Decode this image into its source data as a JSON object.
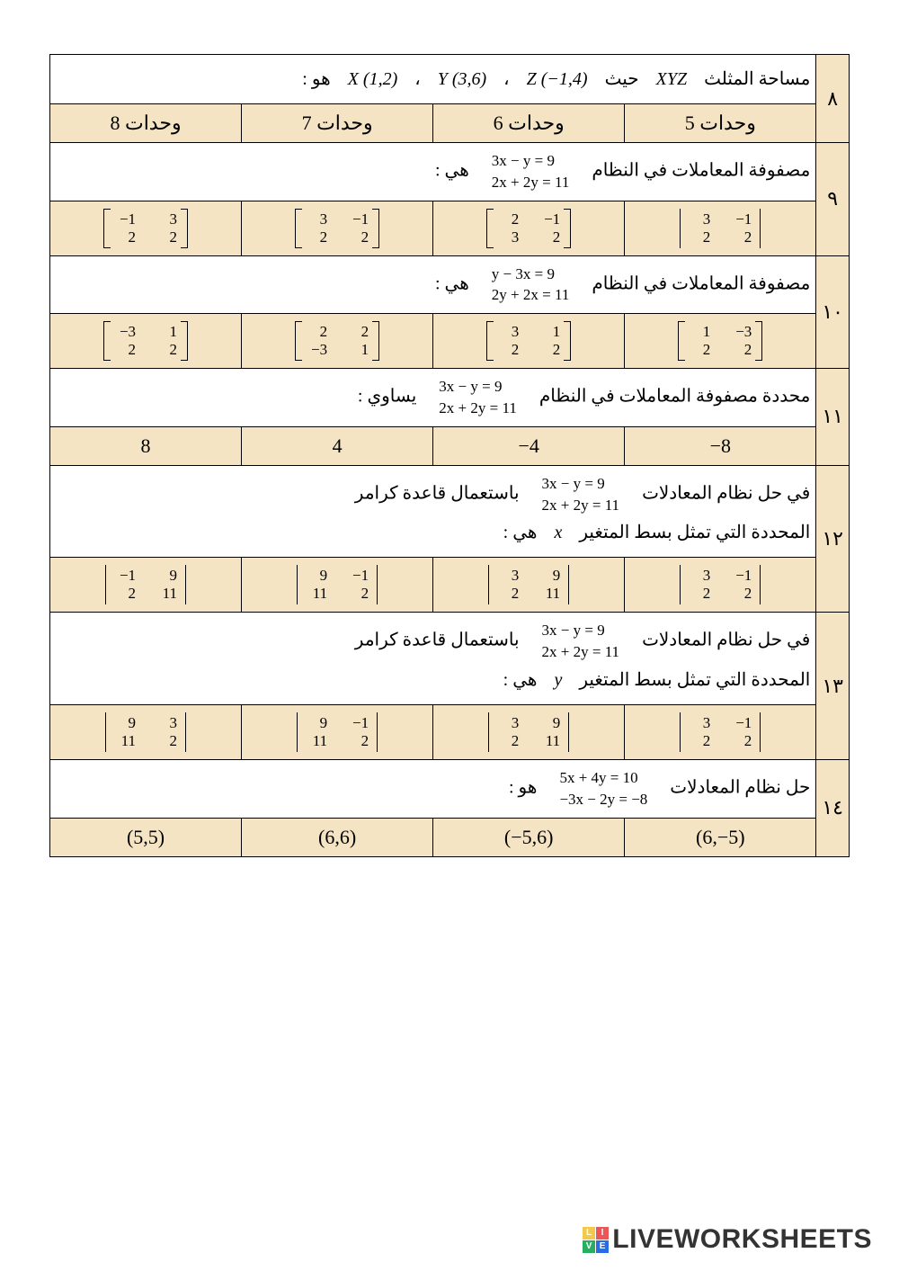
{
  "colors": {
    "num_bg": "#f5e4c4",
    "answer_bg": "#f5e4c4",
    "border": "#000000",
    "page_bg": "#ffffff",
    "text": "#000000"
  },
  "watermark": {
    "text": "LIVEWORKSHEETS",
    "badge": [
      "L",
      "I",
      "V",
      "E"
    ]
  },
  "questions": [
    {
      "num": "٨",
      "text_parts": [
        "مساحة المثلث",
        "XYZ",
        "حيث",
        "Z (−1,4)",
        "،",
        "Y (3,6)",
        "،",
        "X (1,2)",
        "هو :"
      ],
      "answers": [
        "5 وحدات",
        "6 وحدات",
        "7 وحدات",
        "8 وحدات"
      ]
    },
    {
      "num": "٩",
      "text_pre": "مصفوفة المعاملات في النظام",
      "equations": [
        "3x − y = 9",
        "2x + 2y = 11"
      ],
      "text_post": "هي :",
      "answers_matrix": {
        "delim": "vbar_bracket_bracket_bracket",
        "cells": [
          {
            "rows": [
              [
                "3",
                "−1"
              ],
              [
                "2",
                "2"
              ]
            ],
            "delim": "vbar"
          },
          {
            "rows": [
              [
                "2",
                "−1"
              ],
              [
                "3",
                "2"
              ]
            ],
            "delim": "bracket"
          },
          {
            "rows": [
              [
                "3",
                "−1"
              ],
              [
                "2",
                "2"
              ]
            ],
            "delim": "bracket"
          },
          {
            "rows": [
              [
                "−1",
                "3"
              ],
              [
                "2",
                "2"
              ]
            ],
            "delim": "bracket"
          }
        ]
      }
    },
    {
      "num": "١٠",
      "text_pre": "مصفوفة المعاملات في النظام",
      "equations": [
        "y − 3x = 9",
        "2y + 2x = 11"
      ],
      "text_post": "هي :",
      "answers_matrix": {
        "cells": [
          {
            "rows": [
              [
                "1",
                "−3"
              ],
              [
                "2",
                "2"
              ]
            ],
            "delim": "bracket"
          },
          {
            "rows": [
              [
                "3",
                "1"
              ],
              [
                "2",
                "2"
              ]
            ],
            "delim": "bracket"
          },
          {
            "rows": [
              [
                "2",
                "2"
              ],
              [
                "−3",
                "1"
              ]
            ],
            "delim": "bracket"
          },
          {
            "rows": [
              [
                "−3",
                "1"
              ],
              [
                "2",
                "2"
              ]
            ],
            "delim": "bracket"
          }
        ]
      }
    },
    {
      "num": "١١",
      "text_pre": "محددة مصفوفة المعاملات في النظام",
      "equations": [
        "3x − y = 9",
        "2x + 2y = 11"
      ],
      "text_post": "يساوي :",
      "answers": [
        "−8",
        "−4",
        "4",
        "8"
      ]
    },
    {
      "num": "١٢",
      "line1_pre": "في حل نظام المعادلات",
      "equations": [
        "3x − y = 9",
        "2x + 2y = 11"
      ],
      "line1_post": "باستعمال قاعدة كرامر",
      "line2_parts": [
        "المحددة التي تمثل بسط المتغير",
        "x",
        "هي :"
      ],
      "answers_matrix": {
        "cells": [
          {
            "rows": [
              [
                "3",
                "−1"
              ],
              [
                "2",
                "2"
              ]
            ],
            "delim": "vbar"
          },
          {
            "rows": [
              [
                "3",
                "9"
              ],
              [
                "2",
                "11"
              ]
            ],
            "delim": "vbar"
          },
          {
            "rows": [
              [
                "9",
                "−1"
              ],
              [
                "11",
                "2"
              ]
            ],
            "delim": "vbar"
          },
          {
            "rows": [
              [
                "−1",
                "9"
              ],
              [
                "2",
                "11"
              ]
            ],
            "delim": "vbar"
          }
        ]
      }
    },
    {
      "num": "١٣",
      "line1_pre": "في حل نظام المعادلات",
      "equations": [
        "3x − y = 9",
        "2x + 2y = 11"
      ],
      "line1_post": "باستعمال قاعدة كرامر",
      "line2_parts": [
        "المحددة التي تمثل بسط المتغير",
        "y",
        "هي :"
      ],
      "answers_matrix": {
        "cells": [
          {
            "rows": [
              [
                "3",
                "−1"
              ],
              [
                "2",
                "2"
              ]
            ],
            "delim": "vbar"
          },
          {
            "rows": [
              [
                "3",
                "9"
              ],
              [
                "2",
                "11"
              ]
            ],
            "delim": "vbar"
          },
          {
            "rows": [
              [
                "9",
                "−1"
              ],
              [
                "11",
                "2"
              ]
            ],
            "delim": "vbar"
          },
          {
            "rows": [
              [
                "9",
                "3"
              ],
              [
                "11",
                "2"
              ]
            ],
            "delim": "vbar"
          }
        ]
      }
    },
    {
      "num": "١٤",
      "text_pre": "حل نظام المعادلات",
      "equations": [
        "5x + 4y = 10",
        "−3x − 2y = −8"
      ],
      "text_post": "هو :",
      "answers": [
        "(6,−5)",
        "(−5,6)",
        "(6,6)",
        "(5,5)"
      ]
    }
  ]
}
